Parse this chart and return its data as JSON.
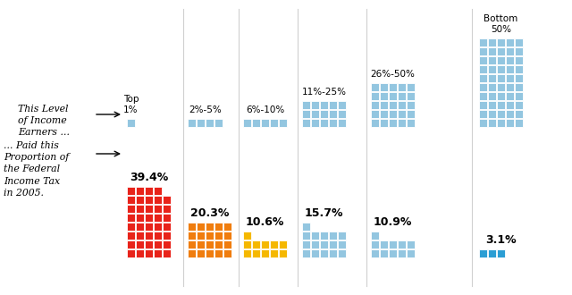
{
  "group_labels": [
    "Top\n1%",
    "2%-5%",
    "6%-10%",
    "11%-25%",
    "26%-50%",
    "Bottom\n50%"
  ],
  "group_sizes": [
    1,
    4,
    5,
    15,
    25,
    50
  ],
  "proportions": [
    39.4,
    20.3,
    10.6,
    15.7,
    10.9,
    3.1
  ],
  "proportion_labels": [
    "39.4%",
    "20.3%",
    "10.6%",
    "15.7%",
    "10.9%",
    "3.1%"
  ],
  "bar_colors": [
    "#e8231a",
    "#f07d0e",
    "#f5b800",
    "#93c6e0",
    "#93c6e0",
    "#2b9ed4"
  ],
  "top_bar_color": "#93c6e0",
  "bg_color": "#ffffff",
  "sep_color": "#d0d0d0",
  "left_label1": "This Level\nof Income\nEarners ...",
  "left_label2": "... Paid this\nProportion of\nthe Federal\nIncome Tax\nin 2005."
}
